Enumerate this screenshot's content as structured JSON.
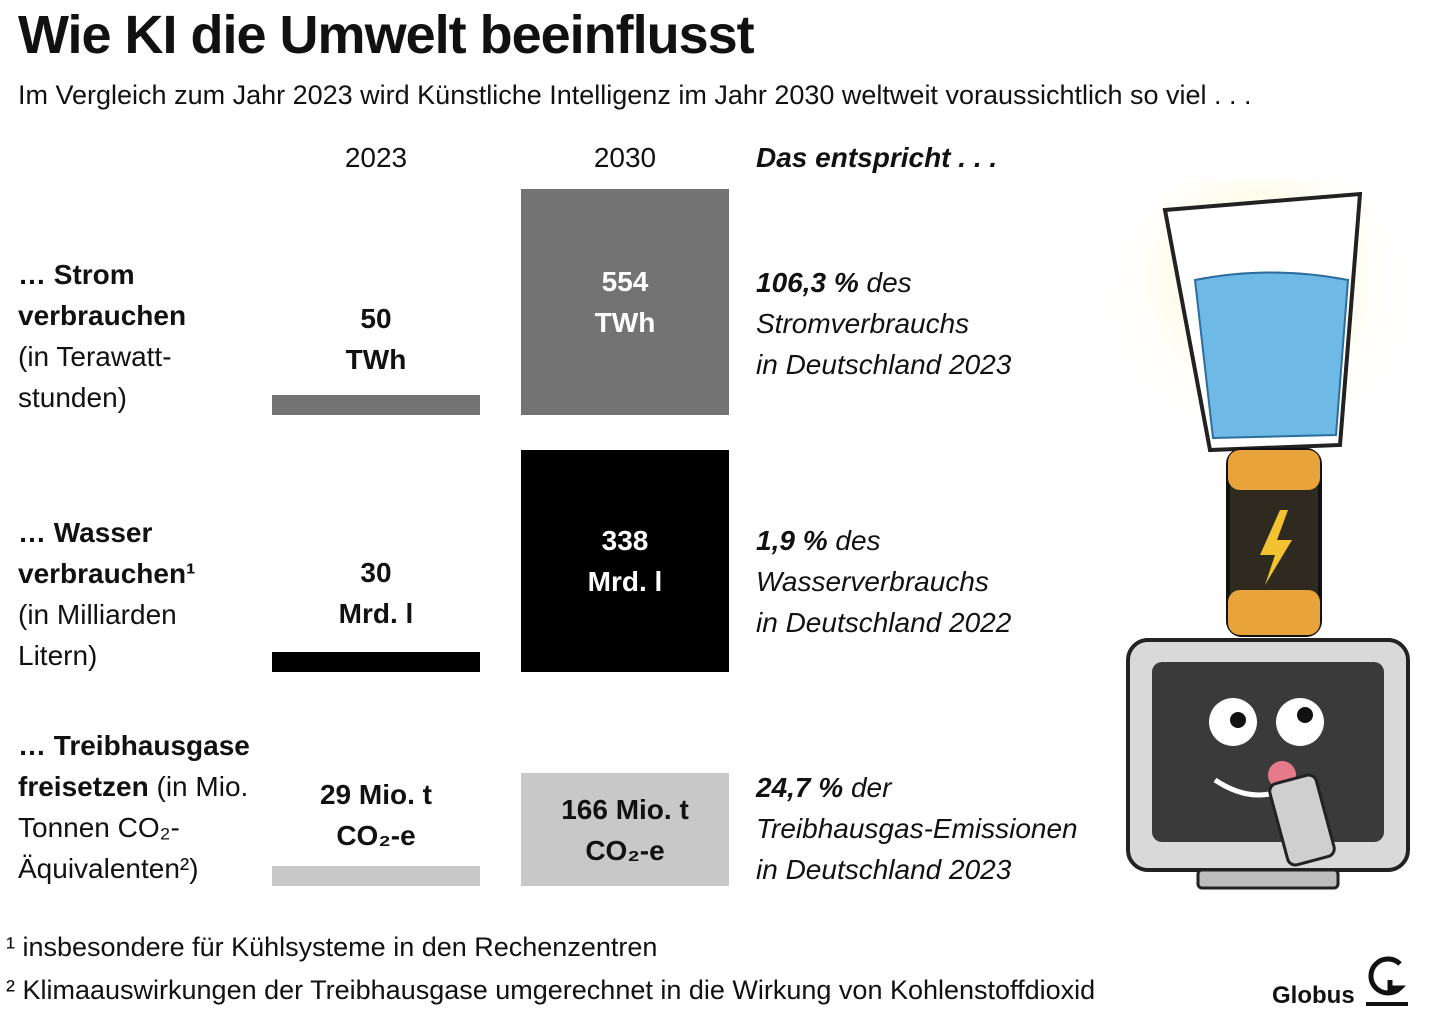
{
  "title": "Wie KI die Umwelt beeinflusst",
  "subtitle": "Im Vergleich zum Jahr 2023 wird Künstliche Intelligenz im Jahr 2030 weltweit voraussichtlich so viel . . .",
  "column_headers": [
    "2023",
    "2030",
    "Das entspricht . . ."
  ],
  "rows": [
    {
      "label_bold": "… Strom\nverbrauchen",
      "label_note": "\n(in Terawatt-\nstunden)",
      "color": "#737373",
      "text_color_2030": "#ffffff",
      "values": [
        50,
        554
      ],
      "value_labels": [
        "50\nTWh",
        "554\nTWh"
      ],
      "equivalent_value": "106,3 %",
      "equivalent_text": " des\nStromverbrauchs\nin Deutschland 2023"
    },
    {
      "label_bold": "… Wasser\nverbrauchen¹",
      "label_note": "\n(in Milliarden\nLitern)",
      "color": "#000000",
      "text_color_2030": "#ffffff",
      "values": [
        30,
        338
      ],
      "value_labels": [
        "30\nMrd. l",
        "338\nMrd. l"
      ],
      "equivalent_value": "1,9 %",
      "equivalent_text": " des\nWasserverbrauchs\nin Deutschland 2022"
    },
    {
      "label_bold": "… Treibhausgase\nfreisetzen",
      "label_note": " (in Mio.\nTonnen CO₂-\nÄquivalenten²)",
      "color": "#c8c8c8",
      "text_color_2030": "#111111",
      "values": [
        29,
        166
      ],
      "value_labels": [
        "29 Mio. t\nCO₂-e",
        "166 Mio. t\nCO₂-e"
      ],
      "equivalent_value": "24,7 %",
      "equivalent_text": " der\nTreibhausgas-Emissionen\nin Deutschland 2023"
    }
  ],
  "footnotes": [
    "¹ insbesondere für Kühlsysteme in den Rechenzentren",
    "² Klimaauswirkungen der Treibhausgase umgerechnet in die Wirkung von Kohlenstoffdioxid"
  ],
  "source": "Globus"
}
